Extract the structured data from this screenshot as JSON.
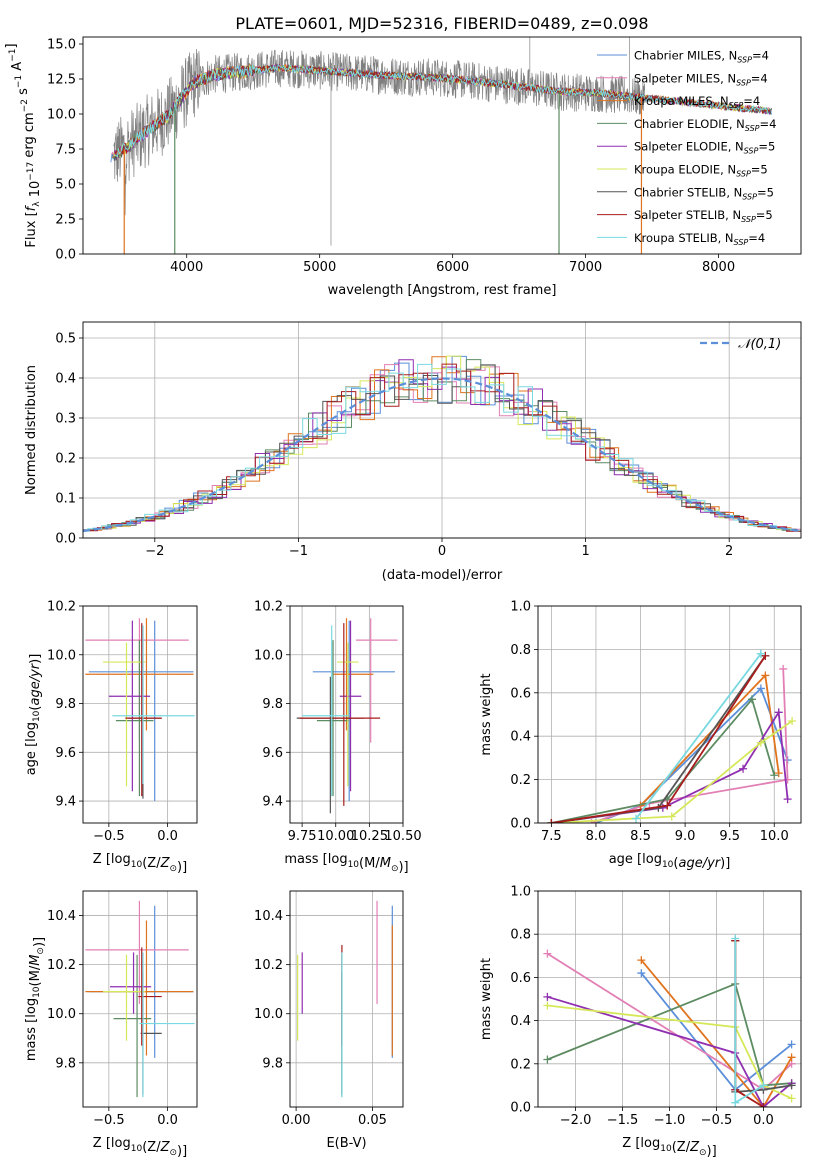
{
  "title": "PLATE=0601, MJD=52316, FIBERID=0489, z=0.098",
  "colors": {
    "Chabrier MILES": "#5b8fd9",
    "Salpeter MILES": "#e27fb5",
    "Kroupa MILES": "#e0731d",
    "Chabrier ELODIE": "#5d8c63",
    "Salpeter ELODIE": "#8f2eb0",
    "Kroupa ELODIE": "#d6e85a",
    "Chabrier STELIB": "#555555",
    "Salpeter STELIB": "#a81c1c",
    "Kroupa STELIB": "#79d9e0",
    "data": "#7f7f7f",
    "gaussian": "#5b8fd9"
  },
  "legend_models": [
    {
      "name": "Chabrier MILES",
      "nssp": "4"
    },
    {
      "name": "Salpeter MILES",
      "nssp": "4"
    },
    {
      "name": "Kroupa MILES",
      "nssp": "4"
    },
    {
      "name": "Chabrier ELODIE",
      "nssp": "4"
    },
    {
      "name": "Salpeter ELODIE",
      "nssp": "5"
    },
    {
      "name": "Kroupa ELODIE",
      "nssp": "5"
    },
    {
      "name": "Chabrier STELIB",
      "nssp": "5"
    },
    {
      "name": "Salpeter STELIB",
      "nssp": "5"
    },
    {
      "name": "Kroupa STELIB",
      "nssp": "4"
    }
  ],
  "chart_data": [
    {
      "id": "spectrum",
      "type": "line",
      "xlabel": "wavelength [Angstrom, rest frame]",
      "ylabel": "Flux [f_λ 10^-17 erg cm^-2 s^-1 A^-1]",
      "xlim": [
        3220,
        8620
      ],
      "ylim": [
        0,
        15.5
      ],
      "xticks": [
        4000,
        5000,
        6000,
        7000,
        8000
      ],
      "yticks": [
        0.0,
        2.5,
        5.0,
        7.5,
        10.0,
        12.5,
        15.0
      ],
      "legend_position": "upper right",
      "continuum": {
        "x": [
          3450,
          3550,
          3700,
          3850,
          3950,
          4050,
          4200,
          4400,
          4700,
          5000,
          5300,
          5600,
          5900,
          6200,
          6500,
          6800,
          7100,
          7400,
          7700,
          8000,
          8300,
          8400
        ],
        "y": [
          7.0,
          7.6,
          8.8,
          9.8,
          11.0,
          12.2,
          12.8,
          13.0,
          13.3,
          13.1,
          12.9,
          12.7,
          12.6,
          12.3,
          12.0,
          11.6,
          11.5,
          11.2,
          10.9,
          10.6,
          10.3,
          10.2
        ]
      },
      "data_range": [
        3450,
        7450
      ],
      "dropouts": [
        {
          "x": 3530,
          "series": "Kroupa MILES"
        },
        {
          "x": 3910,
          "series": "Chabrier ELODIE"
        },
        {
          "x": 6800,
          "series": "Chabrier ELODIE"
        },
        {
          "x": 7420,
          "series": "Kroupa MILES"
        }
      ],
      "spikes": [
        {
          "x": 5085,
          "y": 0.6
        },
        {
          "x": 6580,
          "y": 15.5
        },
        {
          "x": 7330,
          "y": 15.5
        }
      ]
    },
    {
      "id": "residuals",
      "type": "histogram",
      "xlabel": "(data-model)/error",
      "ylabel": "Normed distribution",
      "xlim": [
        -2.5,
        2.5
      ],
      "ylim": [
        0,
        0.54
      ],
      "xticks": [
        -2,
        -1,
        0,
        1,
        2
      ],
      "yticks": [
        0.0,
        0.1,
        0.2,
        0.3,
        0.4,
        0.5
      ],
      "bin_width": 0.1,
      "legend": "𝒩(0,1)",
      "gaussian_mean": 0,
      "gaussian_sigma": 1
    },
    {
      "id": "age-vs-Z",
      "type": "errorbar",
      "xlabel": "Z [log10(Z/Z⊙)]",
      "ylabel": "age  [log10(age/yr)]",
      "xlim": [
        -0.72,
        0.25
      ],
      "ylim": [
        9.31,
        10.2
      ],
      "xticks": [
        -0.5,
        0.0
      ],
      "yticks": [
        9.4,
        9.6,
        9.8,
        10.0,
        10.2
      ],
      "points": [
        {
          "series": "Chabrier MILES",
          "x": -0.11,
          "y": 9.93,
          "xlo": 0.56,
          "xhi": 0.33,
          "ylo": 0.53,
          "yhi": 0.21
        },
        {
          "series": "Salpeter MILES",
          "x": -0.24,
          "y": 10.06,
          "xlo": 0.46,
          "xhi": 0.42,
          "ylo": 0.41,
          "yhi": 0.09
        },
        {
          "series": "Kroupa MILES",
          "x": -0.18,
          "y": 9.92,
          "xlo": 0.52,
          "xhi": 0.4,
          "ylo": 0.23,
          "yhi": 0.23
        },
        {
          "series": "Chabrier ELODIE",
          "x": -0.24,
          "y": 9.73,
          "xlo": 0.2,
          "xhi": 0.12,
          "ylo": 0.31,
          "yhi": 0.33
        },
        {
          "series": "Salpeter ELODIE",
          "x": -0.3,
          "y": 9.83,
          "xlo": 0.2,
          "xhi": 0.15,
          "ylo": 0.39,
          "yhi": 0.31
        },
        {
          "series": "Kroupa ELODIE",
          "x": -0.35,
          "y": 9.97,
          "xlo": 0.2,
          "xhi": 0.16,
          "ylo": 0.51,
          "yhi": 0.08
        },
        {
          "series": "Chabrier STELIB",
          "x": -0.21,
          "y": 9.74,
          "xlo": 0.13,
          "xhi": 0.16,
          "ylo": 0.33,
          "yhi": 0.38
        },
        {
          "series": "Salpeter STELIB",
          "x": -0.22,
          "y": 9.74,
          "xlo": 0.14,
          "xhi": 0.17,
          "ylo": 0.32,
          "yhi": 0.39
        },
        {
          "series": "Kroupa STELIB",
          "x": -0.21,
          "y": 9.75,
          "xlo": 0.26,
          "xhi": 0.44,
          "ylo": 0.28,
          "yhi": 0.37
        }
      ]
    },
    {
      "id": "age-vs-mass",
      "type": "errorbar",
      "xlabel": "mass [log10(M/M⊙)]",
      "ylabel": "",
      "xlim": [
        9.66,
        10.5
      ],
      "ylim": [
        9.31,
        10.2
      ],
      "xticks": [
        9.75,
        10.0,
        10.25,
        10.5
      ],
      "yticks": [
        9.4,
        9.6,
        9.8,
        10.0,
        10.2
      ],
      "points": [
        {
          "series": "Chabrier MILES",
          "x": 10.1,
          "y": 9.93,
          "xlo": 0.27,
          "xhi": 0.34,
          "ylo": 0.53,
          "yhi": 0.21
        },
        {
          "series": "Salpeter MILES",
          "x": 10.26,
          "y": 10.06,
          "xlo": 0.11,
          "xhi": 0.2,
          "ylo": 0.42,
          "yhi": 0.09
        },
        {
          "series": "Kroupa MILES",
          "x": 10.08,
          "y": 9.92,
          "xlo": 0.1,
          "xhi": 0.2,
          "ylo": 0.23,
          "yhi": 0.23
        },
        {
          "series": "Chabrier ELODIE",
          "x": 9.98,
          "y": 9.73,
          "xlo": 0.12,
          "xhi": 0.12,
          "ylo": 0.31,
          "yhi": 0.33
        },
        {
          "series": "Salpeter ELODIE",
          "x": 10.11,
          "y": 9.83,
          "xlo": 0.08,
          "xhi": 0.08,
          "ylo": 0.39,
          "yhi": 0.31
        },
        {
          "series": "Kroupa ELODIE",
          "x": 10.09,
          "y": 9.97,
          "xlo": 0.08,
          "xhi": 0.08,
          "ylo": 0.51,
          "yhi": 0.08
        },
        {
          "series": "Chabrier STELIB",
          "x": 9.96,
          "y": 9.74,
          "xlo": 0.25,
          "xhi": 0.25,
          "ylo": 0.39,
          "yhi": 0.17
        },
        {
          "series": "Salpeter STELIB",
          "x": 10.06,
          "y": 9.74,
          "xlo": 0.33,
          "xhi": 0.27,
          "ylo": 0.36,
          "yhi": 0.39
        },
        {
          "series": "Kroupa STELIB",
          "x": 9.97,
          "y": 9.75,
          "xlo": 0.22,
          "xhi": 0.12,
          "ylo": 0.33,
          "yhi": 0.37
        }
      ]
    },
    {
      "id": "weight-vs-age",
      "type": "line",
      "xlabel": "age  [log10(age/yr)]",
      "ylabel": "mass weight",
      "xlim": [
        7.35,
        10.3
      ],
      "ylim": [
        0,
        1.0
      ],
      "xticks": [
        7.5,
        8.0,
        8.5,
        9.0,
        9.5,
        10.0
      ],
      "yticks": [
        0.0,
        0.2,
        0.4,
        0.6,
        0.8,
        1.0
      ],
      "series": [
        {
          "name": "Chabrier MILES",
          "x": [
            8.0,
            8.5,
            9.85,
            10.15
          ],
          "y": [
            0.0,
            0.08,
            0.62,
            0.29
          ]
        },
        {
          "name": "Salpeter MILES",
          "x": [
            7.95,
            8.6,
            10.15,
            10.1
          ],
          "y": [
            0.0,
            0.09,
            0.2,
            0.71
          ]
        },
        {
          "name": "Kroupa MILES",
          "x": [
            8.5,
            9.9,
            10.05
          ],
          "y": [
            0.08,
            0.68,
            0.23
          ]
        },
        {
          "name": "Chabrier ELODIE",
          "x": [
            7.5,
            8.8,
            9.75,
            10.0
          ],
          "y": [
            0.0,
            0.11,
            0.57,
            0.22
          ]
        },
        {
          "name": "Salpeter ELODIE",
          "x": [
            7.5,
            8.75,
            9.65,
            10.05,
            10.15
          ],
          "y": [
            0.0,
            0.07,
            0.25,
            0.51,
            0.11
          ]
        },
        {
          "name": "Kroupa ELODIE",
          "x": [
            7.5,
            8.85,
            9.85,
            10.2
          ],
          "y": [
            0.0,
            0.03,
            0.37,
            0.47
          ]
        },
        {
          "name": "Chabrier STELIB",
          "x": [
            7.5,
            8.7,
            9.9
          ],
          "y": [
            0.0,
            0.07,
            0.77
          ]
        },
        {
          "name": "Salpeter STELIB",
          "x": [
            7.5,
            8.8,
            9.9
          ],
          "y": [
            0.0,
            0.08,
            0.77
          ]
        },
        {
          "name": "Kroupa STELIB",
          "x": [
            8.45,
            9.85,
            9.85
          ],
          "y": [
            0.02,
            0.78,
            0.78
          ]
        }
      ]
    },
    {
      "id": "mass-vs-Z",
      "type": "errorbar",
      "xlabel": "Z [log10(Z/Z⊙)]",
      "ylabel": "mass [log10(M/M⊙)]",
      "xlim": [
        -0.72,
        0.25
      ],
      "ylim": [
        9.62,
        10.5
      ],
      "xticks": [
        -0.5,
        0.0
      ],
      "yticks": [
        9.8,
        10.0,
        10.2,
        10.4
      ],
      "points": [
        {
          "series": "Chabrier MILES",
          "x": -0.11,
          "y": 10.09,
          "xlo": 0.56,
          "xhi": 0.33,
          "ylo": 0.27,
          "yhi": 0.35
        },
        {
          "series": "Salpeter MILES",
          "x": -0.24,
          "y": 10.26,
          "xlo": 0.46,
          "xhi": 0.42,
          "ylo": 0.22,
          "yhi": 0.2
        },
        {
          "series": "Kroupa MILES",
          "x": -0.18,
          "y": 10.09,
          "xlo": 0.52,
          "xhi": 0.4,
          "ylo": 0.26,
          "yhi": 0.29
        },
        {
          "series": "Chabrier ELODIE",
          "x": -0.26,
          "y": 9.98,
          "xlo": 0.2,
          "xhi": 0.12,
          "ylo": 0.32,
          "yhi": 0.26
        },
        {
          "series": "Salpeter ELODIE",
          "x": -0.29,
          "y": 10.11,
          "xlo": 0.2,
          "xhi": 0.15,
          "ylo": 0.11,
          "yhi": 0.14
        },
        {
          "series": "Kroupa ELODIE",
          "x": -0.35,
          "y": 10.09,
          "xlo": 0.2,
          "xhi": 0.16,
          "ylo": 0.2,
          "yhi": 0.15
        },
        {
          "series": "Chabrier STELIB",
          "x": -0.21,
          "y": 9.92,
          "xlo": 0.02,
          "xhi": 0.16,
          "ylo": 0.25,
          "yhi": 0.25
        },
        {
          "series": "Salpeter STELIB",
          "x": -0.22,
          "y": 10.07,
          "xlo": 0.03,
          "xhi": 0.17,
          "ylo": 0.2,
          "yhi": 0.2
        },
        {
          "series": "Kroupa STELIB",
          "x": -0.21,
          "y": 9.96,
          "xlo": 0.03,
          "xhi": 0.44,
          "ylo": 0.3,
          "yhi": 0.29
        }
      ]
    },
    {
      "id": "mass-vs-EBV",
      "type": "errorbar",
      "xlabel": "E(B-V)",
      "ylabel": "",
      "xlim": [
        -0.004,
        0.07
      ],
      "ylim": [
        9.62,
        10.5
      ],
      "xticks": [
        0.0,
        0.05
      ],
      "yticks": [
        9.8,
        10.0,
        10.2,
        10.4
      ],
      "points": [
        {
          "series": "Chabrier MILES",
          "x": 0.063,
          "y": 10.09,
          "ylo": 0.27,
          "yhi": 0.35
        },
        {
          "series": "Salpeter MILES",
          "x": 0.053,
          "y": 10.26,
          "ylo": 0.22,
          "yhi": 0.2
        },
        {
          "series": "Kroupa MILES",
          "x": 0.063,
          "y": 10.09,
          "ylo": 0.26,
          "yhi": 0.27
        },
        {
          "series": "Chabrier ELODIE",
          "x": 0.03,
          "y": 9.98,
          "ylo": 0.32,
          "yhi": 0.26
        },
        {
          "series": "Salpeter ELODIE",
          "x": 0.004,
          "y": 10.11,
          "ylo": 0.11,
          "yhi": 0.14
        },
        {
          "series": "Kroupa ELODIE",
          "x": 0.001,
          "y": 10.09,
          "ylo": 0.2,
          "yhi": 0.15
        },
        {
          "series": "Chabrier STELIB",
          "x": 0.03,
          "y": 9.92,
          "ylo": 0.25,
          "yhi": 0.25
        },
        {
          "series": "Salpeter STELIB",
          "x": 0.03,
          "y": 10.07,
          "ylo": 0.2,
          "yhi": 0.21
        },
        {
          "series": "Kroupa STELIB",
          "x": 0.03,
          "y": 9.96,
          "ylo": 0.3,
          "yhi": 0.29
        }
      ]
    },
    {
      "id": "weight-vs-Z",
      "type": "line",
      "xlabel": "Z [log10(Z/Z⊙)]",
      "ylabel": "mass weight",
      "xlim": [
        -2.4,
        0.4
      ],
      "ylim": [
        0,
        1.0
      ],
      "xticks": [
        -2.0,
        -1.5,
        -1.0,
        -0.5,
        0.0
      ],
      "yticks": [
        0.0,
        0.2,
        0.4,
        0.6,
        0.8,
        1.0
      ],
      "series": [
        {
          "name": "Chabrier MILES",
          "x": [
            -1.3,
            -0.3,
            0.3
          ],
          "y": [
            0.62,
            0.08,
            0.29
          ]
        },
        {
          "name": "Salpeter MILES",
          "x": [
            -2.3,
            0.0,
            0.3
          ],
          "y": [
            0.71,
            0.08,
            0.2
          ]
        },
        {
          "name": "Kroupa MILES",
          "x": [
            -1.3,
            0.0,
            0.3
          ],
          "y": [
            0.68,
            0.0,
            0.23
          ]
        },
        {
          "name": "Chabrier ELODIE",
          "x": [
            -2.3,
            -0.3,
            0.0,
            0.3
          ],
          "y": [
            0.22,
            0.57,
            0.1,
            0.11
          ]
        },
        {
          "name": "Salpeter ELODIE",
          "x": [
            -2.3,
            -0.3,
            0.0,
            0.3
          ],
          "y": [
            0.51,
            0.25,
            0.0,
            0.11
          ]
        },
        {
          "name": "Kroupa ELODIE",
          "x": [
            -2.3,
            -0.3,
            0.0,
            0.3
          ],
          "y": [
            0.47,
            0.37,
            0.1,
            0.04
          ]
        },
        {
          "name": "Chabrier STELIB",
          "x": [
            -0.3,
            -0.3,
            0.0,
            0.3
          ],
          "y": [
            0.77,
            0.07,
            0.08,
            0.1
          ]
        },
        {
          "name": "Salpeter STELIB",
          "x": [
            -0.3,
            -0.3,
            0.0
          ],
          "y": [
            0.77,
            0.08,
            0.0
          ]
        },
        {
          "name": "Kroupa STELIB",
          "x": [
            -0.3,
            -0.3,
            0.0
          ],
          "y": [
            0.78,
            0.02,
            0.1
          ]
        }
      ]
    }
  ]
}
